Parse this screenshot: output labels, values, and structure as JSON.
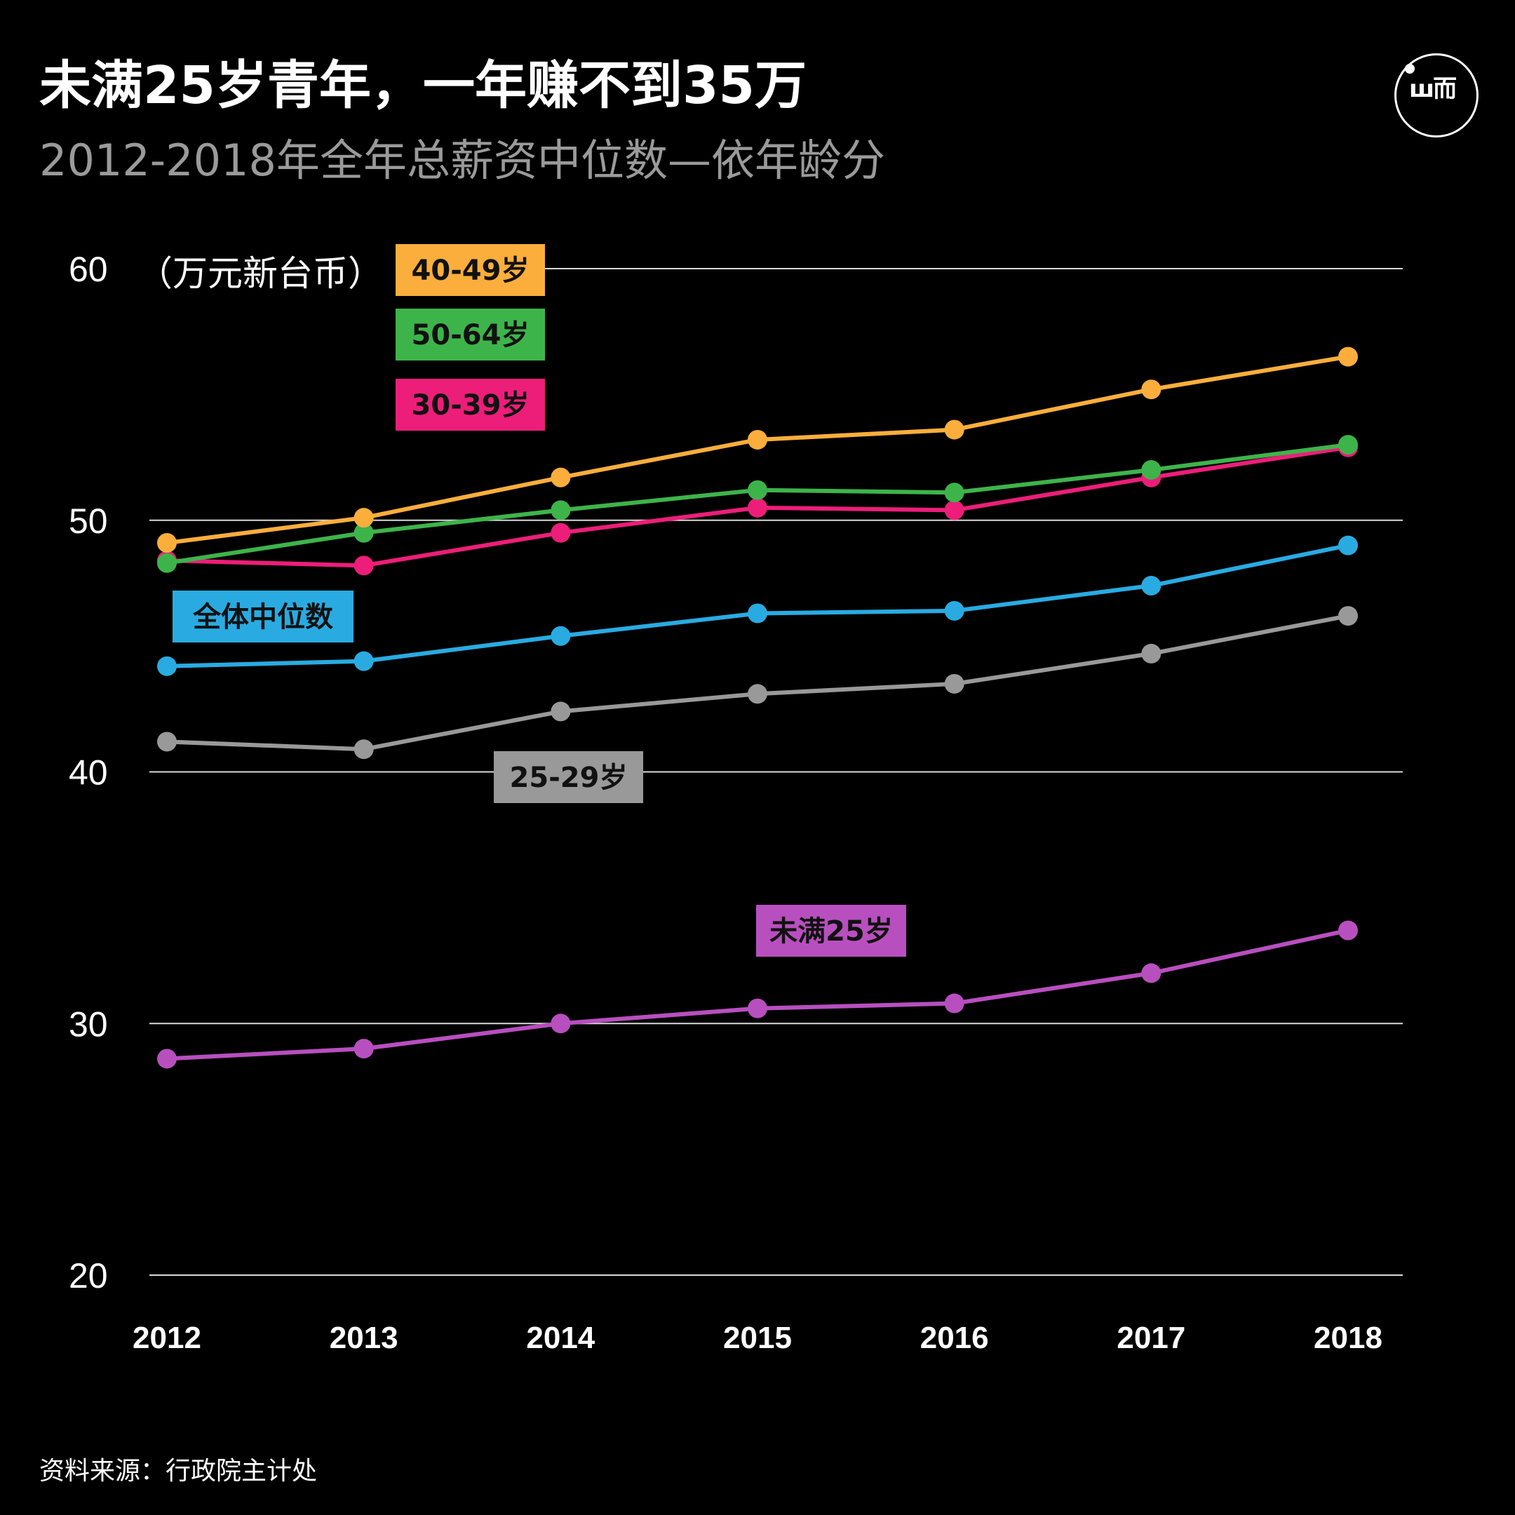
{
  "header": {
    "title": "未满25岁青年，一年赚不到35万",
    "subtitle": "2012-2018年全年总薪资中位数—依年龄分"
  },
  "footer": {
    "source": "资料来源：行政院主计处"
  },
  "logo": {
    "mark": "ш而",
    "icon": "brand-logo-icon"
  },
  "chart_data": {
    "type": "line",
    "unit_label": "（万元新台币）",
    "x": [
      2012,
      2013,
      2014,
      2015,
      2016,
      2017,
      2018
    ],
    "ylim": [
      20,
      60
    ],
    "yticks": [
      60,
      50,
      40,
      30,
      20
    ],
    "grid": true,
    "series": [
      {
        "name": "40-49岁",
        "color": "#fbae3c",
        "values": [
          49.1,
          50.1,
          51.7,
          53.2,
          53.6,
          55.2,
          56.5
        ]
      },
      {
        "name": "50-64岁",
        "color": "#3db44a",
        "values": [
          48.3,
          49.5,
          50.4,
          51.2,
          51.1,
          52.0,
          53.0
        ]
      },
      {
        "name": "30-39岁",
        "color": "#ec1e79",
        "values": [
          48.4,
          48.2,
          49.5,
          50.5,
          50.4,
          51.7,
          52.9
        ]
      },
      {
        "name": "全体中位数",
        "color": "#29abe2",
        "values": [
          44.2,
          44.4,
          45.4,
          46.3,
          46.4,
          47.4,
          49.0
        ]
      },
      {
        "name": "25-29岁",
        "color": "#999999",
        "values": [
          41.2,
          40.9,
          42.4,
          43.1,
          43.5,
          44.7,
          46.2
        ]
      },
      {
        "name": "未满25岁",
        "color": "#b84fbf",
        "values": [
          28.6,
          29.0,
          30.0,
          30.6,
          30.8,
          32.0,
          33.7
        ]
      }
    ]
  }
}
